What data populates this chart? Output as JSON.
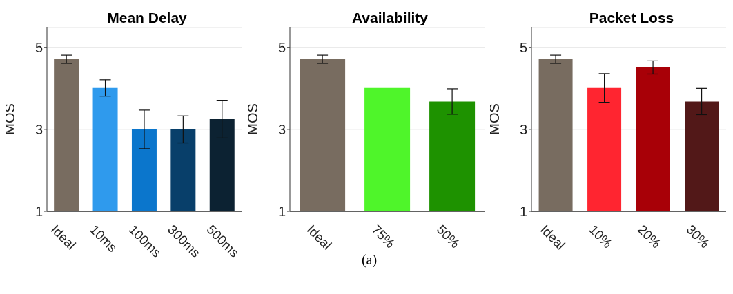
{
  "chart_data": [
    {
      "type": "bar",
      "title": "Mean Delay",
      "ylabel": "MOS",
      "categories": [
        "Ideal",
        "10ms",
        "100ms",
        "300ms",
        "500ms"
      ],
      "values": [
        4.71,
        4.01,
        3.0,
        3.0,
        3.25
      ],
      "errors": [
        0.1,
        0.2,
        0.47,
        0.33,
        0.46
      ],
      "colors": [
        "#786c60",
        "#2f9aed",
        "#0b76cc",
        "#083f6a",
        "#0c2232"
      ],
      "ylim": [
        1,
        5.5
      ],
      "yticks": [
        1,
        3,
        5
      ],
      "grid": "y"
    },
    {
      "type": "bar",
      "title": "Availability",
      "ylabel": "MOS",
      "categories": [
        "Ideal",
        "75%",
        "50%"
      ],
      "values": [
        4.71,
        4.01,
        3.68
      ],
      "errors": [
        0.1,
        0,
        0.31
      ],
      "colors": [
        "#786c60",
        "#4ff52a",
        "#1e9200"
      ],
      "ylim": [
        1,
        5.5
      ],
      "yticks": [
        1,
        3,
        5
      ],
      "grid": "y",
      "annotations": [
        "(a)"
      ]
    },
    {
      "type": "bar",
      "title": "Packet Loss",
      "ylabel": "MOS",
      "categories": [
        "Ideal",
        "10%",
        "20%",
        "30%"
      ],
      "values": [
        4.71,
        4.01,
        4.51,
        3.68
      ],
      "errors": [
        0.1,
        0.35,
        0.16,
        0.32
      ],
      "colors": [
        "#786c60",
        "#ff2530",
        "#a80007",
        "#521818"
      ],
      "ylim": [
        1,
        5.5
      ],
      "yticks": [
        1,
        3,
        5
      ],
      "grid": "y"
    }
  ]
}
